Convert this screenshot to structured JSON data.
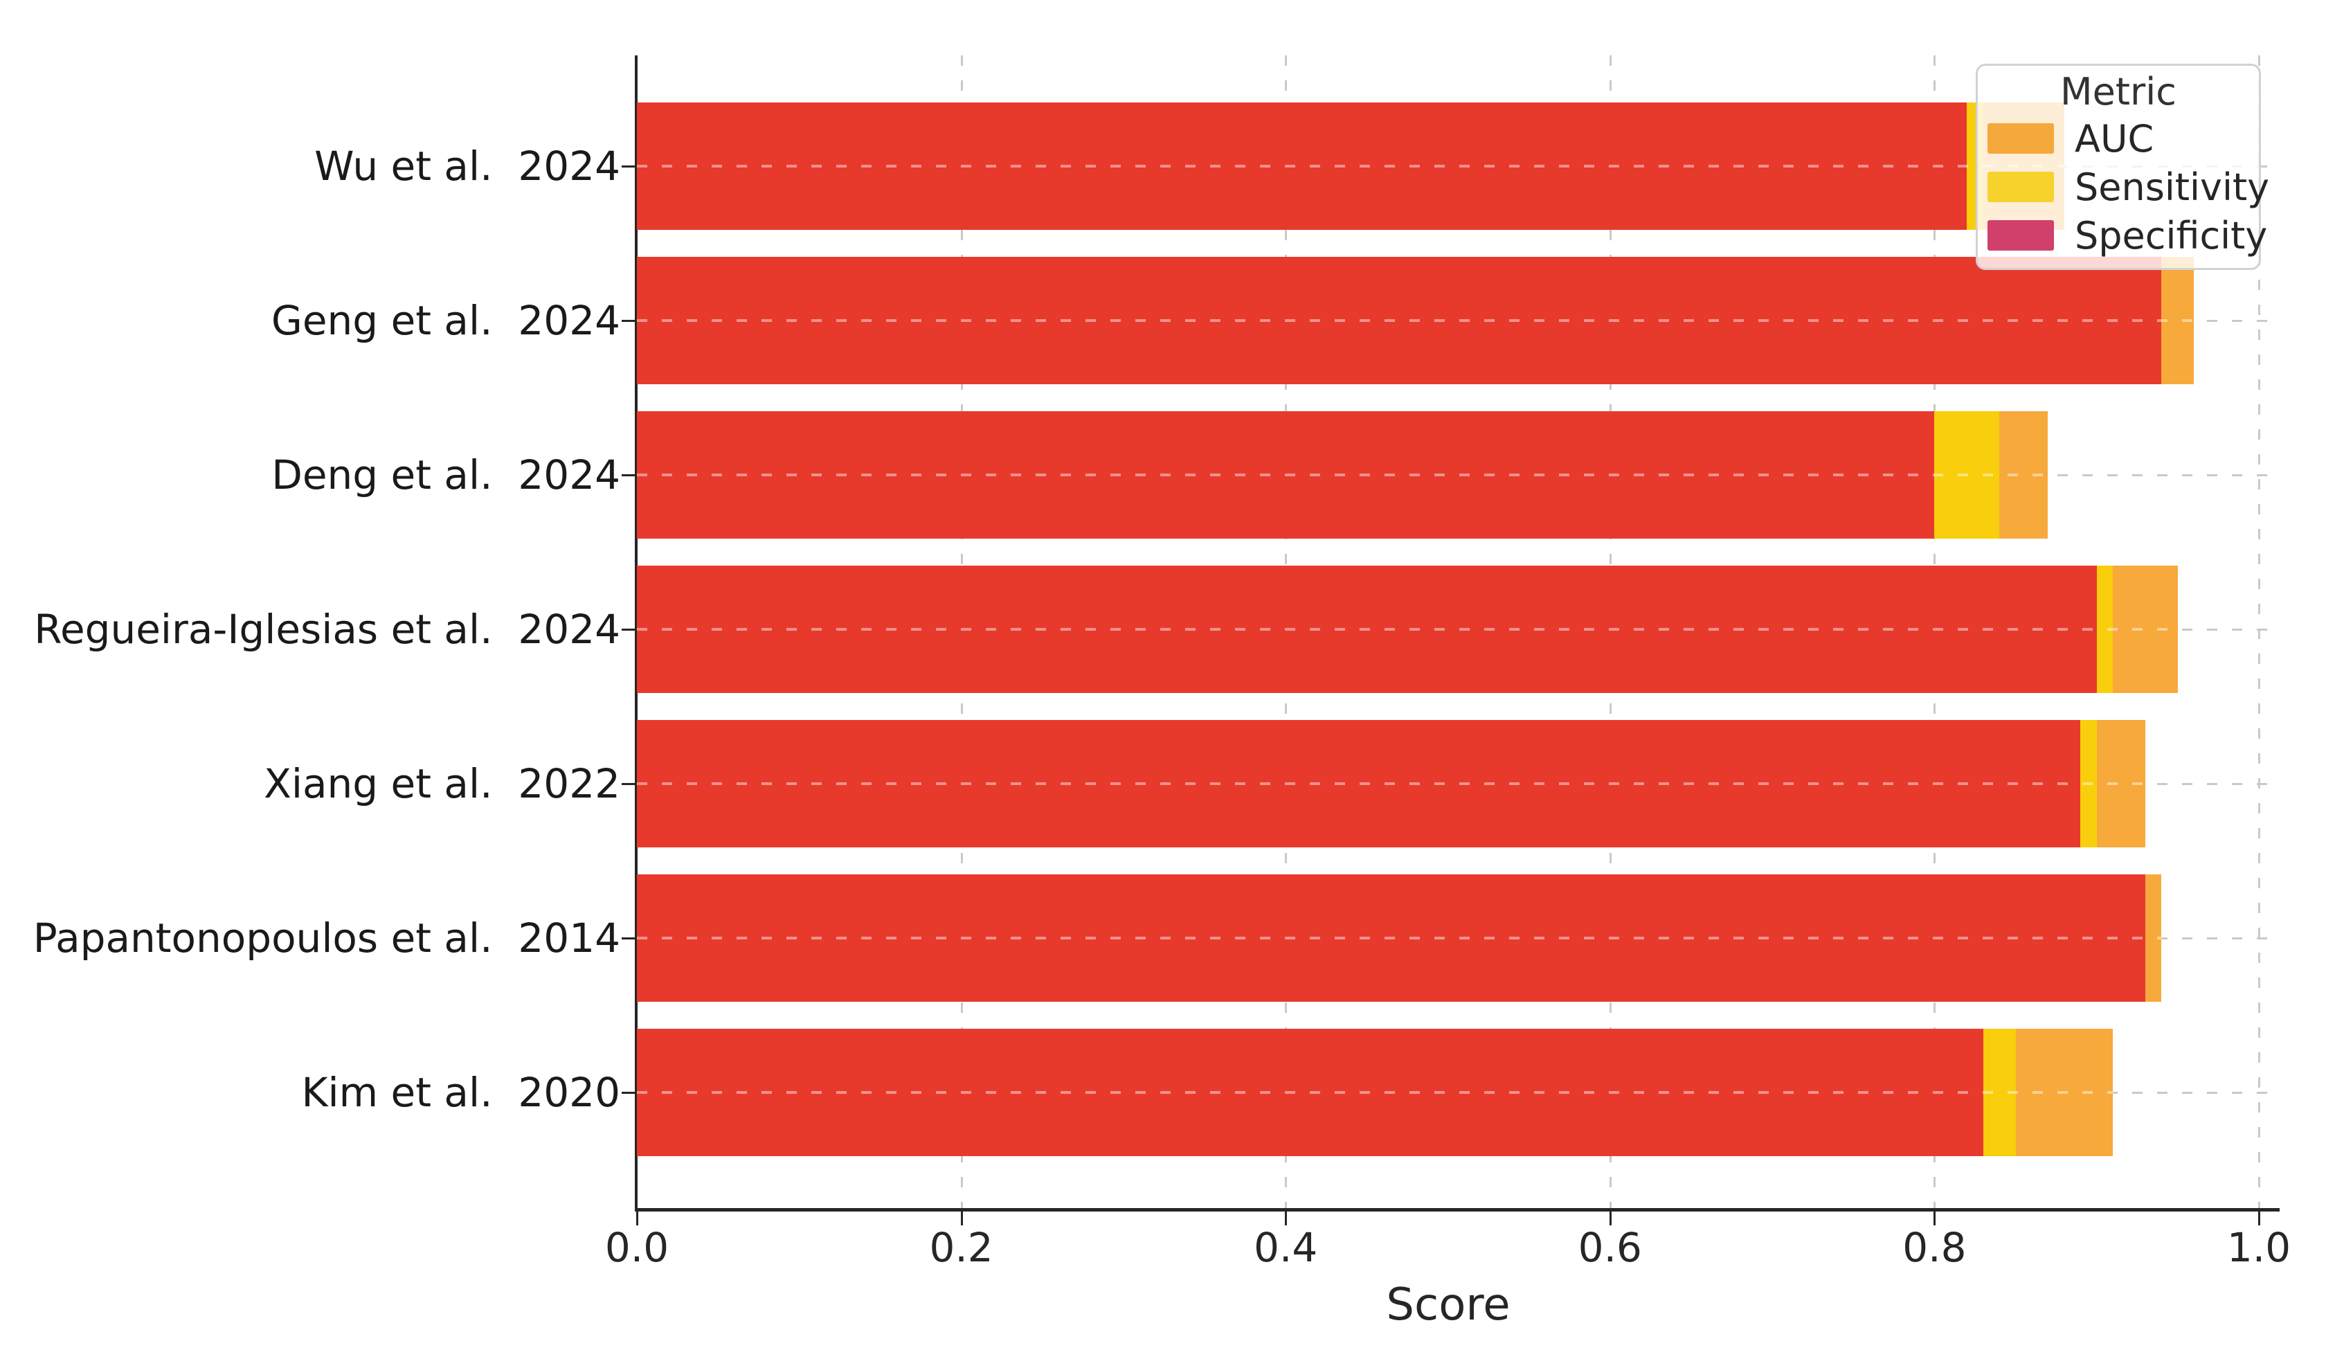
{
  "figure": {
    "background_color": "#ffffff",
    "grid_color": "#c9c9c9",
    "axis_color": "#262626",
    "text_color": "#1a1a1a"
  },
  "chart_data": {
    "type": "bar",
    "orientation": "horizontal",
    "style": "overlapping-bars (AUC behind, Sensitivity middle, Specificity on top)",
    "title": "",
    "xlabel": "Score",
    "ylabel": "",
    "xlim": [
      0.0,
      1.0
    ],
    "xticks": [
      "0.0",
      "0.2",
      "0.4",
      "0.6",
      "0.8",
      "1.0"
    ],
    "xtick_values": [
      0.0,
      0.2,
      0.4,
      0.6,
      0.8,
      1.0
    ],
    "grid": "dashed, on",
    "categories": [
      "Wu et al.  2024",
      "Geng et al.  2024",
      "Deng et al.  2024",
      "Regueira-Iglesias et al.  2024",
      "Xiang et al.  2022",
      "Papantonopoulos et al.  2014",
      "Kim et al.  2020"
    ],
    "series": [
      {
        "name": "AUC",
        "color": "#F7A93B",
        "values": [
          0.88,
          0.96,
          0.87,
          0.95,
          0.93,
          0.94,
          0.91
        ]
      },
      {
        "name": "Sensitivity",
        "color": "#F9CE0C",
        "values": [
          0.83,
          0.94,
          0.84,
          0.91,
          0.9,
          0.93,
          0.85
        ]
      },
      {
        "name": "Specificity",
        "color": "#E8392D",
        "values": [
          0.82,
          0.94,
          0.8,
          0.9,
          0.89,
          0.93,
          0.83
        ]
      }
    ],
    "legend": {
      "title": "Metric",
      "position": "upper right",
      "entries": [
        {
          "label": "AUC",
          "color": "#F5A83B"
        },
        {
          "label": "Sensitivity",
          "color": "#F6D32B"
        },
        {
          "label": "Specificity",
          "color": "#D0406B"
        }
      ]
    }
  }
}
